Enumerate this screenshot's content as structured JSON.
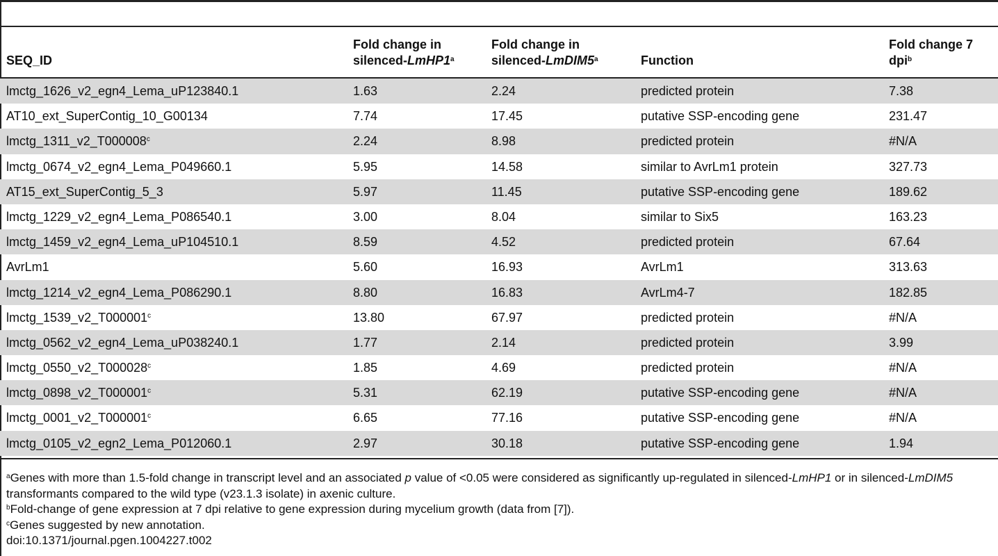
{
  "headers": {
    "seq_id": "SEQ_ID",
    "fc_hp1_pre": "Fold change in silenced-",
    "fc_hp1_gene": "LmHP1",
    "fc_hp1_sup": "a",
    "fc_dim5_pre": "Fold change in silenced-",
    "fc_dim5_gene": "LmDIM5",
    "fc_dim5_sup": "a",
    "function": "Function",
    "fc_7dpi": "Fold change 7 dpi",
    "fc_7dpi_sup": "b"
  },
  "rows": [
    {
      "seq": "lmctg_1626_v2_egn4_Lema_uP123840.1",
      "sup": "",
      "hp1": "1.63",
      "dim5": "2.24",
      "func": "predicted protein",
      "dpi": "7.38"
    },
    {
      "seq": "AT10_ext_SuperContig_10_G00134",
      "sup": "",
      "hp1": "7.74",
      "dim5": "17.45",
      "func": "putative SSP-encoding gene",
      "dpi": "231.47"
    },
    {
      "seq": "lmctg_1311_v2_T000008",
      "sup": "c",
      "hp1": "2.24",
      "dim5": "8.98",
      "func": "predicted protein",
      "dpi": "#N/A"
    },
    {
      "seq": "lmctg_0674_v2_egn4_Lema_P049660.1",
      "sup": "",
      "hp1": "5.95",
      "dim5": "14.58",
      "func": "similar to AvrLm1 protein",
      "dpi": "327.73"
    },
    {
      "seq": "AT15_ext_SuperContig_5_3",
      "sup": "",
      "hp1": "5.97",
      "dim5": "11.45",
      "func": "putative SSP-encoding gene",
      "dpi": "189.62"
    },
    {
      "seq": "lmctg_1229_v2_egn4_Lema_P086540.1",
      "sup": "",
      "hp1": "3.00",
      "dim5": "8.04",
      "func": "similar to Six5",
      "dpi": "163.23"
    },
    {
      "seq": "lmctg_1459_v2_egn4_Lema_uP104510.1",
      "sup": "",
      "hp1": "8.59",
      "dim5": "4.52",
      "func": "predicted protein",
      "dpi": "67.64"
    },
    {
      "seq": "AvrLm1",
      "sup": "",
      "hp1": "5.60",
      "dim5": "16.93",
      "func": "AvrLm1",
      "dpi": "313.63"
    },
    {
      "seq": "lmctg_1214_v2_egn4_Lema_P086290.1",
      "sup": "",
      "hp1": "8.80",
      "dim5": "16.83",
      "func": "AvrLm4-7",
      "dpi": "182.85"
    },
    {
      "seq": "lmctg_1539_v2_T000001",
      "sup": "c",
      "hp1": "13.80",
      "dim5": "67.97",
      "func": "predicted protein",
      "dpi": "#N/A"
    },
    {
      "seq": "lmctg_0562_v2_egn4_Lema_uP038240.1",
      "sup": "",
      "hp1": "1.77",
      "dim5": "2.14",
      "func": "predicted protein",
      "dpi": "3.99"
    },
    {
      "seq": "lmctg_0550_v2_T000028",
      "sup": "c",
      "hp1": "1.85",
      "dim5": "4.69",
      "func": "predicted protein",
      "dpi": "#N/A"
    },
    {
      "seq": "lmctg_0898_v2_T000001",
      "sup": "c",
      "hp1": "5.31",
      "dim5": "62.19",
      "func": "putative SSP-encoding gene",
      "dpi": "#N/A"
    },
    {
      "seq": "lmctg_0001_v2_T000001",
      "sup": "c",
      "hp1": "6.65",
      "dim5": "77.16",
      "func": "putative SSP-encoding gene",
      "dpi": "#N/A"
    },
    {
      "seq": "lmctg_0105_v2_egn2_Lema_P012060.1",
      "sup": "",
      "hp1": "2.97",
      "dim5": "30.18",
      "func": "putative SSP-encoding gene",
      "dpi": "1.94"
    }
  ],
  "footnotes": {
    "a_sup": "a",
    "a_t1": "Genes with more than 1.5-fold change in transcript level and an associated ",
    "a_p": "p",
    "a_t2": " value of <0.05 were considered as significantly up-regulated in silenced-",
    "a_g1": "LmHP1",
    "a_t3": " or in silenced-",
    "a_g2": "LmDIM5",
    "a_t4": " transformants compared to the wild type (v23.1.3 isolate) in axenic culture.",
    "b_sup": "b",
    "b_text": "Fold-change of gene expression at 7 dpi relative to gene expression during mycelium growth (data from [7]).",
    "c_sup": "c",
    "c_text": "Genes suggested by new annotation.",
    "doi": "doi:10.1371/journal.pgen.1004227.t002"
  }
}
